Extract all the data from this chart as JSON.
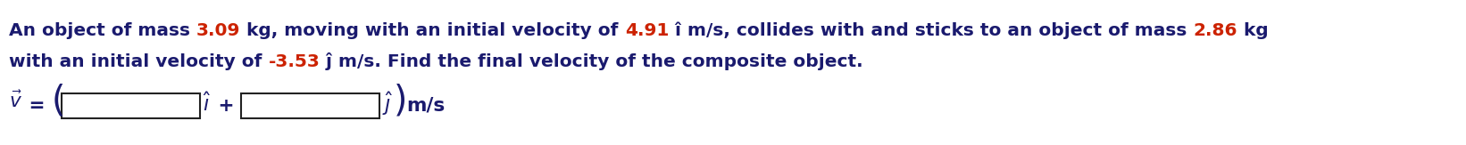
{
  "line1": {
    "parts": [
      {
        "text": "An object of mass ",
        "color": "#1a1a6e"
      },
      {
        "text": "3.09",
        "color": "#cc2200"
      },
      {
        "text": " kg, moving with an initial velocity of ",
        "color": "#1a1a6e"
      },
      {
        "text": "4.91",
        "color": "#cc2200"
      },
      {
        "text": " î m/s, collides with and sticks to an object of mass ",
        "color": "#1a1a6e"
      },
      {
        "text": "2.86",
        "color": "#cc2200"
      },
      {
        "text": " kg",
        "color": "#1a1a6e"
      }
    ]
  },
  "line2": {
    "parts": [
      {
        "text": "with an initial velocity of ",
        "color": "#1a1a6e"
      },
      {
        "text": "-3.53",
        "color": "#cc2200"
      },
      {
        "text": " ĵ m/s. Find the final velocity of the composite object.",
        "color": "#1a1a6e"
      }
    ]
  },
  "dark": "#1a1a6e",
  "red": "#cc2200",
  "background": "#ffffff",
  "fontsize": 14.5,
  "fig_width": 16.42,
  "fig_height": 1.63,
  "dpi": 100
}
